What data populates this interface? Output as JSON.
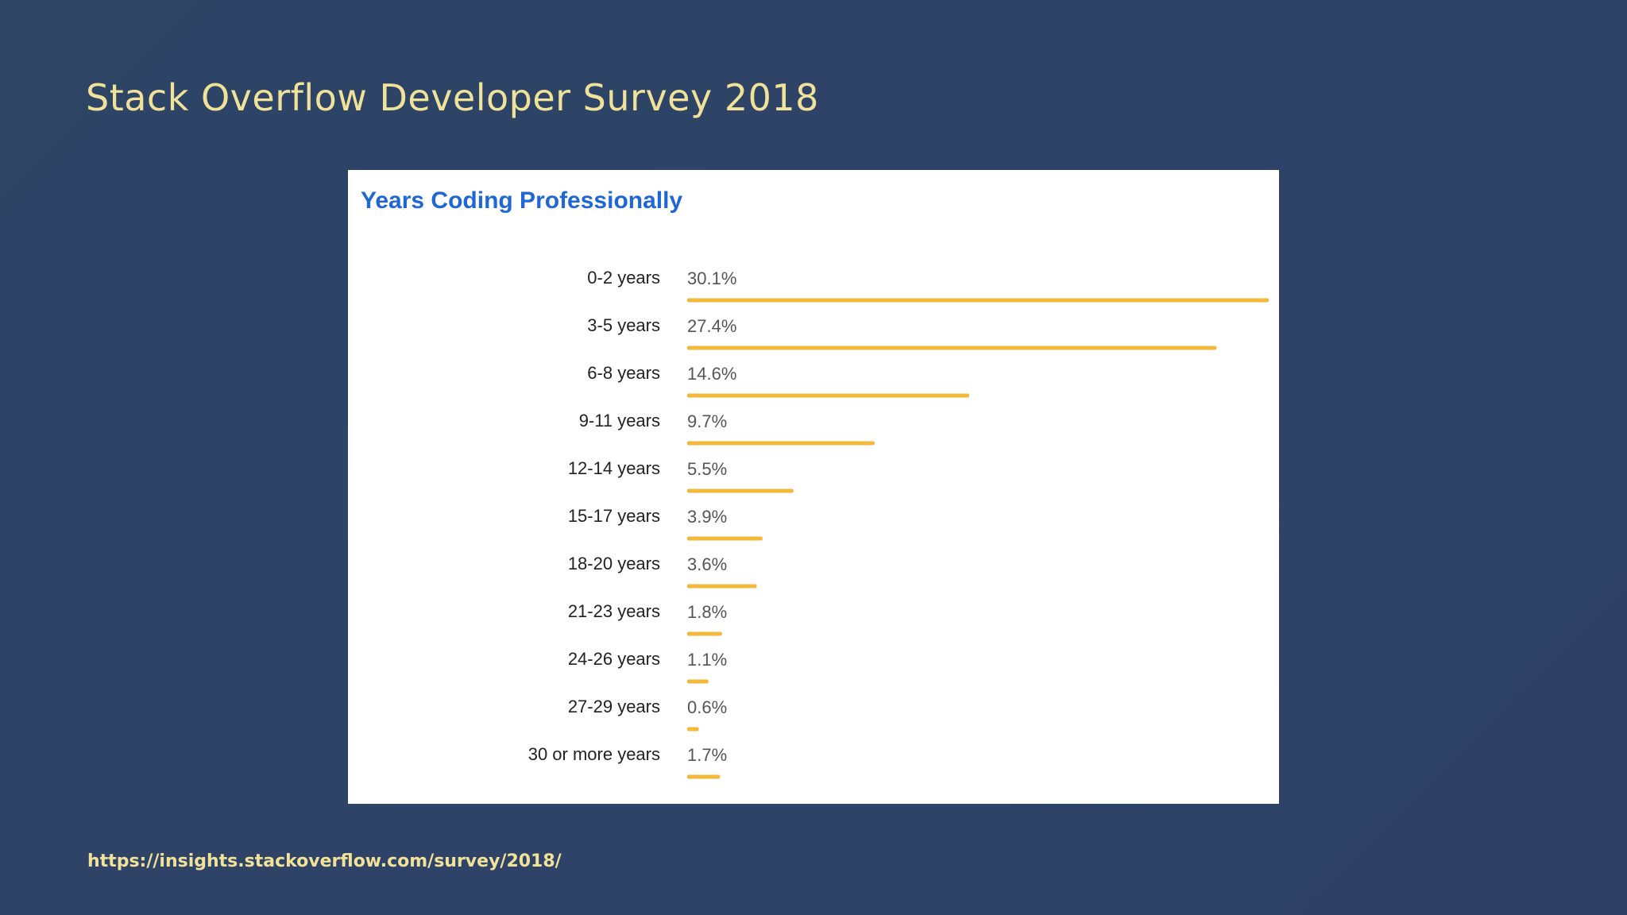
{
  "slide": {
    "title": "Stack Overflow Developer Survey 2018",
    "link": "https://insights.stackoverflow.com/survey/2018/"
  },
  "colors": {
    "background": "#2e4565",
    "title_text": "#f1e29a",
    "chart_title": "#1f66d6",
    "bar": "#f4b93a",
    "category_text": "#222222",
    "value_text": "#555555"
  },
  "chart_data": {
    "type": "bar",
    "orientation": "horizontal",
    "title": "Years Coding Professionally",
    "xlabel": "",
    "ylabel": "",
    "categories": [
      "0-2 years",
      "3-5 years",
      "6-8 years",
      "9-11 years",
      "12-14 years",
      "15-17 years",
      "18-20 years",
      "21-23 years",
      "24-26 years",
      "27-29 years",
      "30 or more years"
    ],
    "values": [
      30.1,
      27.4,
      14.6,
      9.7,
      5.5,
      3.9,
      3.6,
      1.8,
      1.1,
      0.6,
      1.7
    ],
    "value_labels": [
      "30.1%",
      "27.4%",
      "14.6%",
      "9.7%",
      "5.5%",
      "3.9%",
      "3.6%",
      "1.8%",
      "1.1%",
      "0.6%",
      "1.7%"
    ],
    "xlim": [
      0,
      30.1
    ],
    "grid": false,
    "legend": "none"
  }
}
